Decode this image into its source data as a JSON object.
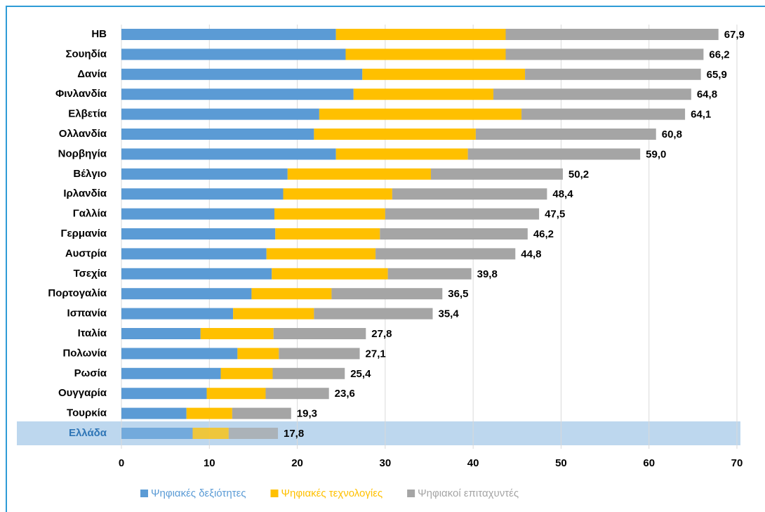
{
  "chart_data": {
    "type": "stacked-barh",
    "categories": [
      "ΗΒ",
      "Σουηδία",
      "Δανία",
      "Φινλανδία",
      "Ελβετία",
      "Ολλανδία",
      "Νορβηγία",
      "Βέλγιο",
      "Ιρλανδία",
      "Γαλλία",
      "Γερμανία",
      "Αυστρία",
      "Τσεχία",
      "Πορτογαλία",
      "Ισπανία",
      "Ιταλία",
      "Πολωνία",
      "Ρωσία",
      "Ουγγαρία",
      "Τουρκία",
      "Ελλάδα"
    ],
    "series": [
      {
        "name": "Ψηφιακές δεξιότητες",
        "color": "#5b9bd5",
        "values": [
          24.4,
          25.5,
          27.4,
          26.4,
          22.5,
          21.9,
          24.4,
          18.9,
          18.4,
          17.4,
          17.5,
          16.5,
          17.1,
          14.8,
          12.7,
          9.0,
          13.2,
          11.3,
          9.7,
          7.4,
          8.1
        ]
      },
      {
        "name": "Ψηφιακές τεχνολογίες",
        "color": "#ffc000",
        "values": [
          19.3,
          18.2,
          18.5,
          15.9,
          23.0,
          18.4,
          15.0,
          16.3,
          12.4,
          12.6,
          11.9,
          12.4,
          13.2,
          9.1,
          9.2,
          8.3,
          4.7,
          5.9,
          6.7,
          5.2,
          4.1
        ]
      },
      {
        "name": "Ψηφιακοί επιταχυντές",
        "color": "#a5a5a5",
        "values": [
          24.2,
          22.5,
          20.0,
          22.5,
          18.6,
          20.5,
          19.6,
          15.0,
          17.6,
          17.5,
          16.8,
          15.9,
          9.5,
          12.6,
          13.5,
          10.5,
          9.2,
          8.2,
          7.2,
          6.7,
          5.6
        ]
      }
    ],
    "totals": [
      67.9,
      66.2,
      65.9,
      64.8,
      64.1,
      60.8,
      59.0,
      50.2,
      48.4,
      47.5,
      46.2,
      44.8,
      39.8,
      36.5,
      35.4,
      27.8,
      27.1,
      25.4,
      23.6,
      19.3,
      17.8
    ],
    "total_labels": [
      "67,9",
      "66,2",
      "65,9",
      "64,8",
      "64,1",
      "60,8",
      "59,0",
      "50,2",
      "48,4",
      "47,5",
      "46,2",
      "44,8",
      "39,8",
      "36,5",
      "35,4",
      "27,8",
      "27,1",
      "25,4",
      "23,6",
      "19,3",
      "17,8"
    ],
    "xlim": [
      0,
      70
    ],
    "xticks": [
      0,
      10,
      20,
      30,
      40,
      50,
      60,
      70
    ],
    "grid": true,
    "legend": "bottom",
    "highlight": 20
  }
}
